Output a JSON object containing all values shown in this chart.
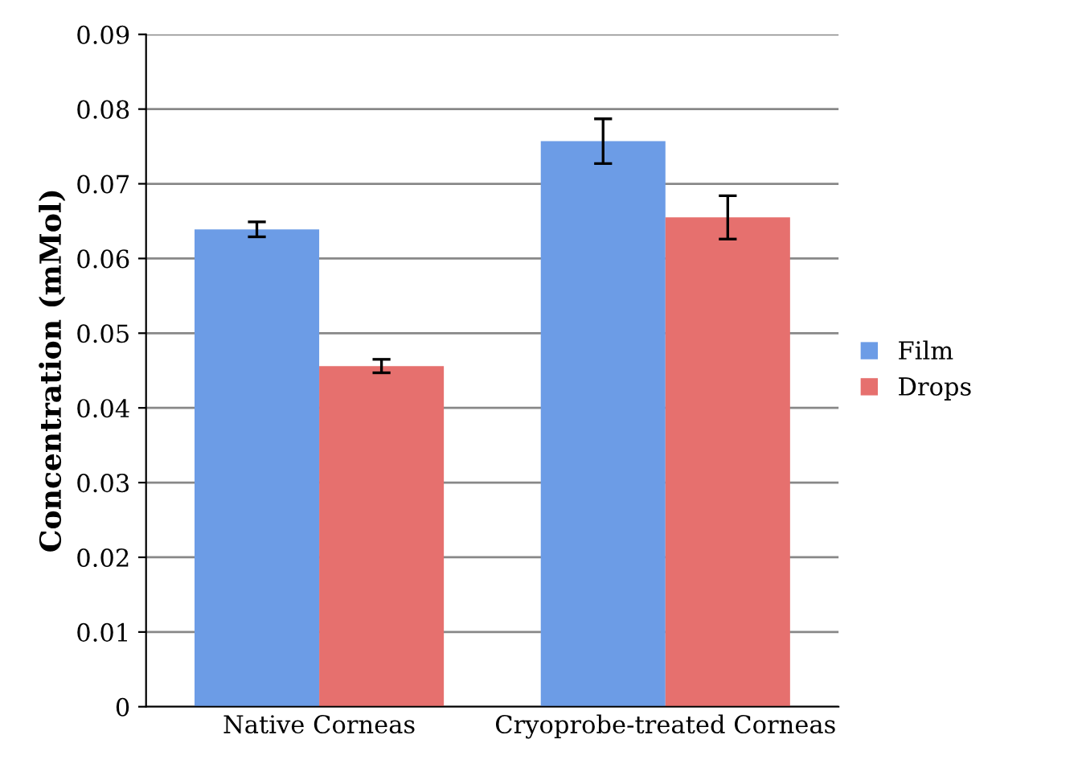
{
  "chart_data": {
    "type": "bar",
    "ylabel": "Concentration (mMol)",
    "categories": [
      "Native Corneas",
      "Cryoprobe-treated Corneas"
    ],
    "series": [
      {
        "name": "Film",
        "color": "#6c9ce6",
        "values": [
          0.0639,
          0.0757
        ],
        "errors": [
          0.001,
          0.003
        ]
      },
      {
        "name": "Drops",
        "color": "#e6706e",
        "values": [
          0.0456,
          0.0655
        ],
        "errors": [
          0.0009,
          0.0029
        ]
      }
    ],
    "ylim": [
      0,
      0.09
    ],
    "yticks": [
      {
        "value": 0,
        "label": "0"
      },
      0.01,
      0.02,
      0.03,
      0.04,
      0.05,
      0.06,
      0.07,
      0.08,
      0.09
    ],
    "grid": "y",
    "legend": "right"
  }
}
